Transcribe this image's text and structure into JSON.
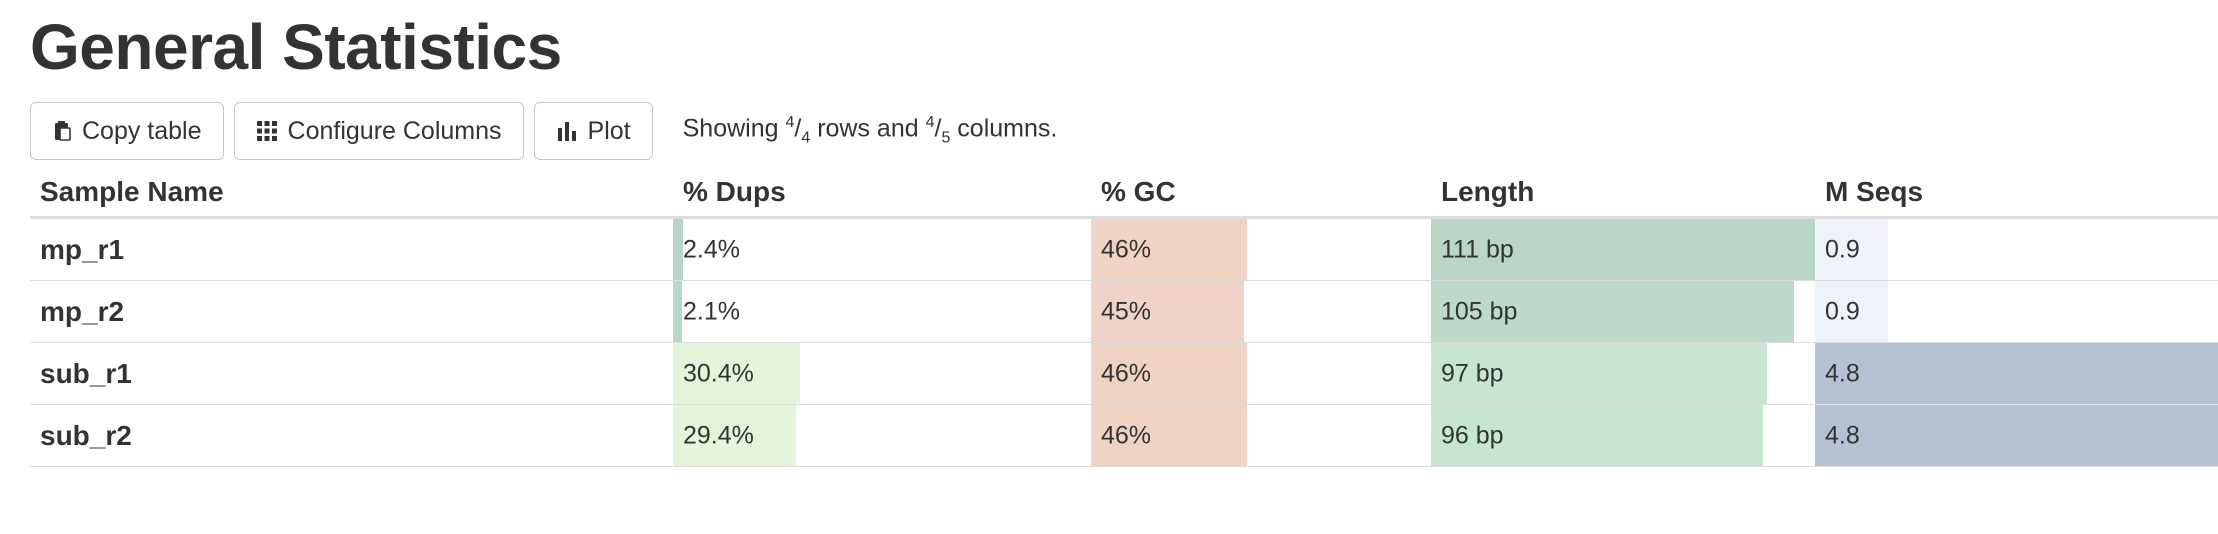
{
  "page": {
    "title": "General Statistics"
  },
  "toolbar": {
    "copy_label": "Copy table",
    "configure_label": "Configure Columns",
    "plot_label": "Plot",
    "showing": {
      "prefix": "Showing ",
      "rows_shown": "4",
      "rows_total": "4",
      "mid": " rows and ",
      "cols_shown": "4",
      "cols_total": "5",
      "suffix": " columns."
    }
  },
  "table": {
    "headers": [
      "Sample Name",
      "% Dups",
      "% GC",
      "Length",
      "M Seqs"
    ],
    "rows": [
      {
        "name": "mp_r1",
        "dups": "2.4%",
        "gc": "46%",
        "length": "111 bp",
        "mseqs": "0.9"
      },
      {
        "name": "mp_r2",
        "dups": "2.1%",
        "gc": "45%",
        "length": "105 bp",
        "mseqs": "0.9"
      },
      {
        "name": "sub_r1",
        "dups": "30.4%",
        "gc": "46%",
        "length": "97 bp",
        "mseqs": "4.8"
      },
      {
        "name": "sub_r2",
        "dups": "29.4%",
        "gc": "46%",
        "length": "96 bp",
        "mseqs": "4.8"
      }
    ],
    "bar_levels": {
      "dups": [
        0.024,
        0.021,
        0.304,
        0.294
      ],
      "gc": [
        0.46,
        0.45,
        0.46,
        0.46
      ],
      "length": [
        1.0,
        0.946,
        0.874,
        0.865
      ],
      "mseqs": [
        0.18,
        0.18,
        1.0,
        1.0
      ]
    },
    "bar_colors": {
      "dups": [
        "#b6d7c6",
        "#b8d8c8",
        "#e6f4dc",
        "#e6f4dc"
      ],
      "gc": [
        "#f1d3c4",
        "#efd2c8",
        "#f1d3c4",
        "#f1d3c4"
      ],
      "length": [
        "#b9d6c7",
        "#bcd9ca",
        "#c6e6d1",
        "#c6e6d1"
      ],
      "mseqs": [
        "#eef3f9",
        "#eef3f9",
        "#b6c1d3",
        "#b6c1d3"
      ]
    }
  }
}
